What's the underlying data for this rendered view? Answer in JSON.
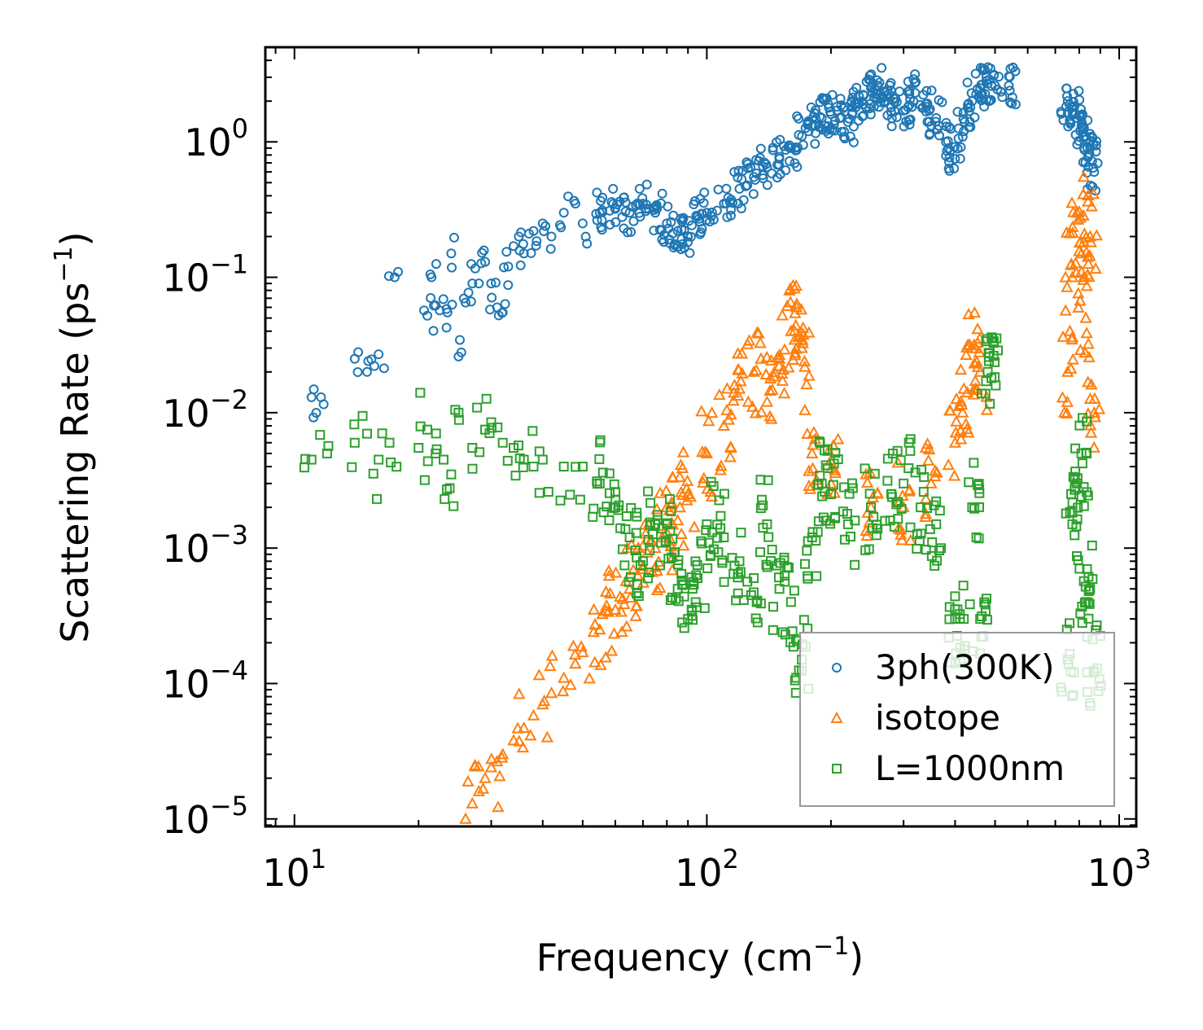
{
  "chart_data": {
    "type": "scatter",
    "xscale": "log",
    "yscale": "log",
    "xlim": [
      8.5,
      1100
    ],
    "ylim": [
      8.8e-06,
      5
    ],
    "xlabel": "Frequency",
    "xlabel_unit": "cm",
    "xlabel_unit_exp": "−1",
    "ylabel": "Scattering Rate",
    "ylabel_unit": "ps",
    "ylabel_unit_exp": "−1",
    "x_ticks": [
      {
        "value": 10,
        "base": "10",
        "exp": "1"
      },
      {
        "value": 100,
        "base": "10",
        "exp": "2"
      },
      {
        "value": 1000,
        "base": "10",
        "exp": "3"
      }
    ],
    "y_ticks": [
      {
        "value": 1e-05,
        "base": "10",
        "exp": "−5"
      },
      {
        "value": 0.0001,
        "base": "10",
        "exp": "−4"
      },
      {
        "value": 0.001,
        "base": "10",
        "exp": "−3"
      },
      {
        "value": 0.01,
        "base": "10",
        "exp": "−2"
      },
      {
        "value": 0.1,
        "base": "10",
        "exp": "−1"
      },
      {
        "value": 1,
        "base": "10",
        "exp": "0"
      }
    ],
    "legend_position": "lower-right",
    "series": [
      {
        "name": "3ph(300K)",
        "marker": "circle",
        "color": "#1f77b4",
        "x": [
          11,
          11.6,
          14,
          15,
          16,
          17.5,
          21,
          21.5,
          22,
          22.5,
          23.5,
          24,
          25,
          26,
          27,
          28,
          29,
          30,
          31,
          32,
          33,
          34,
          35,
          36,
          38,
          40,
          42,
          45,
          48,
          50,
          55,
          60,
          65,
          70,
          75,
          80,
          85,
          90,
          95,
          100,
          110,
          120,
          130,
          140,
          150,
          160,
          170,
          180,
          190,
          200,
          210,
          220,
          230,
          240,
          250,
          260,
          270,
          280,
          300,
          320,
          340,
          360,
          380,
          400,
          420,
          440,
          460,
          480,
          500,
          540,
          750,
          770,
          790,
          810,
          830,
          850,
          870
        ],
        "y": [
          0.013,
          0.013,
          0.025,
          0.02,
          0.027,
          0.1,
          0.052,
          0.1,
          0.062,
          0.057,
          0.055,
          0.15,
          0.026,
          0.065,
          0.09,
          0.09,
          0.13,
          0.09,
          0.06,
          0.055,
          0.12,
          0.17,
          0.2,
          0.15,
          0.22,
          0.25,
          0.2,
          0.3,
          0.35,
          0.25,
          0.3,
          0.32,
          0.3,
          0.35,
          0.3,
          0.25,
          0.22,
          0.2,
          0.28,
          0.3,
          0.35,
          0.45,
          0.55,
          0.65,
          0.75,
          0.9,
          1.1,
          1.3,
          1.5,
          1.6,
          1.5,
          1.4,
          1.8,
          2.2,
          2.5,
          2.6,
          2.0,
          1.8,
          1.7,
          2.3,
          1.9,
          1.5,
          1.0,
          0.75,
          1.2,
          2.0,
          2.5,
          2.7,
          2.6,
          2.6,
          2.0,
          1.8,
          1.5,
          1.3,
          1.1,
          0.9,
          0.6
        ]
      },
      {
        "name": "isotope",
        "marker": "triangle",
        "color": "#ff7f0e",
        "x": [
          26,
          27,
          28,
          29,
          30,
          32,
          34,
          36,
          38,
          40,
          42,
          45,
          48,
          50,
          55,
          60,
          65,
          70,
          75,
          80,
          85,
          90,
          100,
          110,
          120,
          130,
          140,
          150,
          160,
          165,
          170,
          180,
          200,
          250,
          300,
          350,
          400,
          420,
          440,
          460,
          750,
          770,
          790,
          810,
          830,
          850,
          870
        ],
        "y": [
          1e-05,
          1.3e-05,
          1.6e-05,
          2e-05,
          2.4e-05,
          3e-05,
          3.8e-05,
          4.7e-05,
          5.8e-05,
          7e-05,
          8.5e-05,
          0.00011,
          0.00014,
          0.00017,
          0.00025,
          0.00035,
          0.0005,
          0.0007,
          0.001,
          0.0013,
          0.0016,
          0.0025,
          0.005,
          0.008,
          0.015,
          0.02,
          0.012,
          0.025,
          0.04,
          0.06,
          0.03,
          0.005,
          0.003,
          0.002,
          0.002,
          0.003,
          0.006,
          0.015,
          0.03,
          0.02,
          0.02,
          0.1,
          0.3,
          0.15,
          0.05,
          0.2,
          0.01
        ]
      },
      {
        "name": "L=1000nm",
        "marker": "square",
        "color": "#2ca02c",
        "x": [
          11,
          12,
          14,
          15,
          16,
          17,
          20,
          21,
          22,
          23,
          24,
          25,
          27,
          29,
          30,
          32,
          34,
          36,
          38,
          40,
          45,
          50,
          55,
          60,
          65,
          70,
          75,
          80,
          85,
          90,
          95,
          100,
          110,
          120,
          130,
          140,
          150,
          160,
          170,
          180,
          190,
          200,
          220,
          250,
          280,
          300,
          330,
          360,
          400,
          420,
          440,
          460,
          480,
          490,
          750,
          770,
          790,
          810,
          830,
          850,
          870
        ],
        "y": [
          0.0045,
          0.005,
          0.006,
          0.007,
          0.0045,
          0.006,
          0.0055,
          0.0075,
          0.005,
          0.0045,
          0.0035,
          0.01,
          0.0055,
          0.0075,
          0.0085,
          0.006,
          0.0055,
          0.0045,
          0.004,
          0.0045,
          0.004,
          0.004,
          0.003,
          0.002,
          0.0012,
          0.0008,
          0.0015,
          0.0015,
          0.0005,
          0.0003,
          0.0006,
          0.0015,
          0.0012,
          0.0008,
          0.0006,
          0.0015,
          0.0005,
          0.0004,
          0.00015,
          0.0012,
          0.003,
          0.0025,
          0.0015,
          0.002,
          0.0025,
          0.003,
          0.002,
          0.0015,
          0.0003,
          0.0003,
          0.002,
          0.0003,
          0.02,
          0.018,
          0.00015,
          0.0015,
          0.003,
          0.005,
          0.0004,
          0.0005,
          0.00012
        ]
      }
    ]
  }
}
